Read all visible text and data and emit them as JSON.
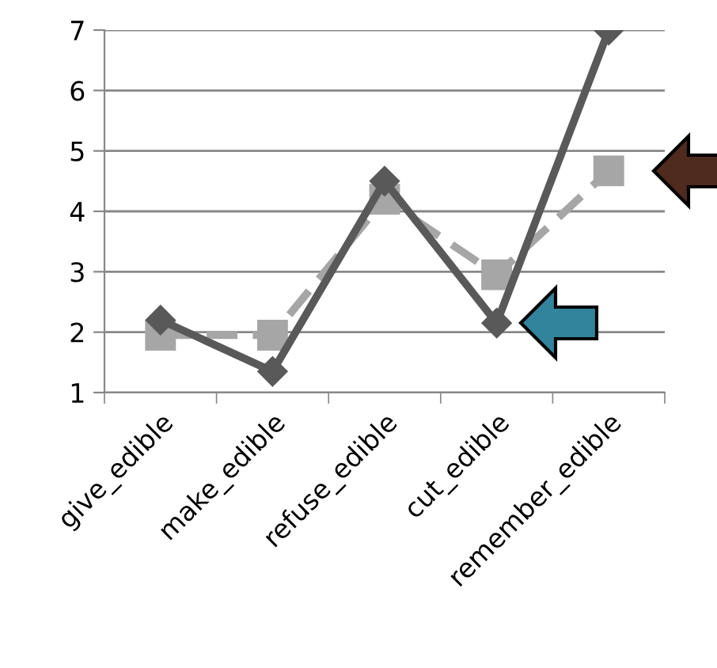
{
  "chart_data": {
    "type": "line",
    "categories": [
      "give_edible",
      "make_edible",
      "refuse_edible",
      "cut_edible",
      "remember_edible"
    ],
    "series": [
      {
        "color": "#595959",
        "values": [
          2.2,
          1.35,
          4.5,
          2.15,
          7.0
        ],
        "marker": "diamond",
        "line_style": "solid"
      },
      {
        "color": "#a6a6a6",
        "values": [
          1.95,
          1.95,
          4.2,
          2.95,
          4.67
        ],
        "marker": "square",
        "line_style": "dashed"
      }
    ],
    "ylim": [
      1,
      7
    ],
    "yticks": [
      1,
      2,
      3,
      4,
      5,
      6,
      7
    ],
    "grid": "y"
  }
}
